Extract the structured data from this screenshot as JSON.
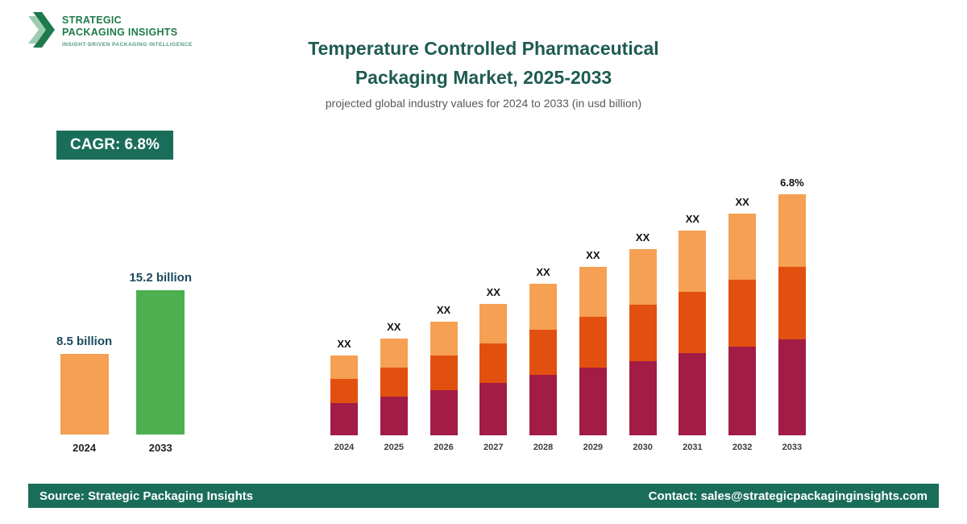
{
  "logo": {
    "line1": "STRATEGIC",
    "line2": "PACKAGING INSIGHTS",
    "tagline": "INSIGHT-DRIVEN PACKAGING INTELLIGENCE"
  },
  "header": {
    "title_line1": "Temperature Controlled Pharmaceutical",
    "title_line2": "Packaging Market, 2025-2033",
    "subtitle": "projected global industry values for 2024 to 2033 (in usd billion)"
  },
  "badge": {
    "label": "CAGR: 6.8%"
  },
  "chart_data": [
    {
      "name": "summary-comparison",
      "type": "bar",
      "categories": [
        "2024",
        "2033"
      ],
      "values": [
        8.5,
        15.2
      ],
      "value_labels": [
        "8.5 billion",
        "15.2 billion"
      ],
      "bar_colors": [
        "#F5A053",
        "#4CAF50"
      ],
      "unit": "usd billion"
    },
    {
      "name": "yearly-stacked",
      "type": "bar",
      "stacked": true,
      "categories": [
        "2024",
        "2025",
        "2026",
        "2027",
        "2028",
        "2029",
        "2030",
        "2031",
        "2032",
        "2033"
      ],
      "bar_labels": [
        "XX",
        "XX",
        "XX",
        "XX",
        "XX",
        "XX",
        "XX",
        "XX",
        "XX",
        "6.8%"
      ],
      "value_axis": "hidden",
      "units": "relative height (actual values masked as XX in source)",
      "series": [
        {
          "name": "bottom",
          "color": "#A21C45",
          "values": [
            40,
            48,
            56,
            65,
            75,
            84,
            92,
            102,
            110,
            119
          ]
        },
        {
          "name": "middle",
          "color": "#E2500F",
          "values": [
            30,
            36,
            43,
            49,
            56,
            63,
            70,
            76,
            83,
            90
          ]
        },
        {
          "name": "top",
          "color": "#F5A053",
          "values": [
            29,
            36,
            42,
            49,
            57,
            62,
            69,
            76,
            82,
            90
          ]
        }
      ]
    }
  ],
  "footer": {
    "source": "Source: Strategic Packaging Insights",
    "contact": "Contact: sales@strategicpackaginginsights.com"
  },
  "colors": {
    "brand_dark_green": "#1A6E59",
    "logo_green": "#1E7A4D",
    "title_text": "#1E5B51",
    "maroon": "#A21C45",
    "orange_red": "#E2500F",
    "light_orange": "#F5A053",
    "green": "#4CAF50",
    "mini_value_label": "#1B4A5E"
  }
}
